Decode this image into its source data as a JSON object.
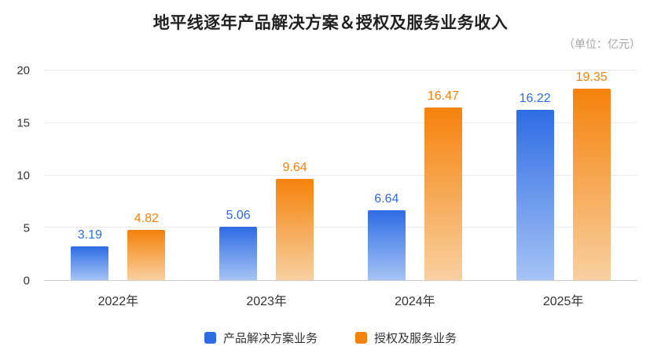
{
  "header": {
    "title": "地平线逐年产品解决方案＆授权及服务业务收入",
    "unit": "（单位：亿元）"
  },
  "chart_data": {
    "type": "bar",
    "title": "地平线逐年产品解决方案＆授权及服务业务收入",
    "unit_label": "（单位：亿元）",
    "categories": [
      "2022年",
      "2023年",
      "2024年",
      "2025年"
    ],
    "series": [
      {
        "key": "solutions",
        "name": "产品解决方案业务",
        "color": "#2e6ce4",
        "color_light": "#a6c3f5",
        "values": [
          3.19,
          5.06,
          6.64,
          16.22
        ]
      },
      {
        "key": "licensing",
        "name": "授权及服务业务",
        "color": "#f5820b",
        "color_light": "#f8d0a0",
        "values": [
          4.82,
          9.64,
          16.47,
          19.35
        ]
      }
    ],
    "xlabel": "",
    "ylabel": "",
    "ylim": [
      0,
      20
    ],
    "yticks": [
      0,
      5,
      10,
      15,
      20
    ],
    "grid": true,
    "legend_position": "bottom"
  }
}
